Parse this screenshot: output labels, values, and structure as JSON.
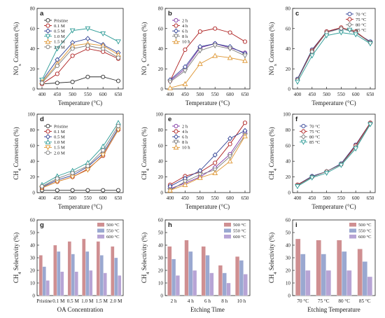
{
  "colors": {
    "g2_0": "#2e2e2e",
    "g2_1": "#ad1e1e",
    "g2_2": "#2e3f93",
    "g2_3": "#2c9b96",
    "g2_4": "#de9531",
    "g2_5": "#7b7b7b",
    "g5_0": "#7b2fa0",
    "g5_1": "#ad1e1e",
    "g5_2": "#2e3f93",
    "g5_3": "#7b7b7b",
    "g5_4": "#de9531",
    "g3_0": "#2e3f93",
    "g3_1": "#ad1e1e",
    "g3_2": "#7b7b7b",
    "g3_3": "#2c9b96",
    "bar_500": "#cf8f91",
    "bar_550": "#9aa8d0",
    "bar_600": "#b7a4d5"
  },
  "chart_data": [
    {
      "panel": "a",
      "type": "line",
      "x": [
        400,
        450,
        500,
        550,
        600,
        650
      ],
      "xlabel": "Temperature (°C)",
      "ylabel": "NOx Conversion (%)",
      "ylim": [
        0,
        80
      ],
      "legend": "top-left",
      "series": [
        {
          "name": "Pristine",
          "marker": "circle",
          "values": [
            5,
            6,
            7,
            12,
            12,
            8
          ]
        },
        {
          "name": "0.1 M",
          "marker": "circle",
          "values": [
            5,
            15,
            33,
            40,
            37,
            30
          ]
        },
        {
          "name": "0.5 M",
          "marker": "diamond",
          "values": [
            8,
            29,
            46,
            50,
            44,
            36
          ]
        },
        {
          "name": "1.0 M",
          "marker": "triangle-down",
          "values": [
            9,
            40,
            58,
            60,
            55,
            47
          ]
        },
        {
          "name": "1.5 M",
          "marker": "triangle",
          "values": [
            7,
            25,
            43,
            45,
            43,
            34
          ]
        },
        {
          "name": "2.0 M",
          "marker": "circle",
          "values": [
            6,
            23,
            40,
            43,
            40,
            31
          ]
        }
      ]
    },
    {
      "panel": "b",
      "type": "line",
      "x": [
        400,
        450,
        500,
        550,
        600,
        650
      ],
      "xlabel": "Temperature (°C)",
      "ylabel": "NOx Conversion (%)",
      "ylim": [
        0,
        80
      ],
      "legend": "top-left",
      "series": [
        {
          "name": "2 h",
          "marker": "circle",
          "values": [
            8,
            20,
            41,
            45,
            41,
            36
          ]
        },
        {
          "name": "4 h",
          "marker": "circle",
          "values": [
            8,
            39,
            57,
            60,
            56,
            47
          ]
        },
        {
          "name": "6 h",
          "marker": "diamond",
          "values": [
            9,
            22,
            42,
            45,
            42,
            35
          ]
        },
        {
          "name": "8 h",
          "marker": "triangle-down",
          "values": [
            7,
            18,
            38,
            43,
            40,
            33
          ]
        },
        {
          "name": "10 h",
          "marker": "triangle",
          "values": [
            1,
            5,
            25,
            33,
            31,
            28
          ]
        }
      ]
    },
    {
      "panel": "c",
      "type": "line",
      "x": [
        400,
        450,
        500,
        550,
        600,
        650
      ],
      "xlabel": "Temperature (°C)",
      "ylabel": "NOx Conversion (%)",
      "ylim": [
        0,
        80
      ],
      "legend": "top-right",
      "series": [
        {
          "name": "70 °C",
          "marker": "circle",
          "values": [
            10,
            39,
            57,
            60,
            56,
            47
          ]
        },
        {
          "name": "75 °C",
          "marker": "circle",
          "values": [
            9,
            38,
            57,
            61,
            57,
            46
          ]
        },
        {
          "name": "80 °C",
          "marker": "diamond",
          "values": [
            9,
            37,
            56,
            60,
            56,
            46
          ]
        },
        {
          "name": "85 °C",
          "marker": "triangle-down",
          "values": [
            7,
            33,
            53,
            56,
            54,
            45
          ]
        }
      ]
    },
    {
      "panel": "d",
      "type": "line",
      "x": [
        400,
        450,
        500,
        550,
        600,
        650
      ],
      "xlabel": "Temperature (°C)",
      "ylabel": "CH4 Conversion (%)",
      "ylim": [
        0,
        100
      ],
      "legend": "top-left",
      "series": [
        {
          "name": "Pristine",
          "marker": "circle",
          "values": [
            3,
            3,
            3,
            3,
            3,
            3
          ]
        },
        {
          "name": "0.1 M",
          "marker": "circle",
          "values": [
            6,
            14,
            20,
            30,
            47,
            80
          ]
        },
        {
          "name": "0.5 M",
          "marker": "diamond",
          "values": [
            7,
            16,
            22,
            33,
            50,
            82
          ]
        },
        {
          "name": "1.0 M",
          "marker": "triangle",
          "values": [
            10,
            21,
            28,
            38,
            59,
            89
          ]
        },
        {
          "name": "1.5 M",
          "marker": "triangle-down",
          "values": [
            6,
            14,
            20,
            29,
            48,
            80
          ]
        },
        {
          "name": "2.0 M",
          "marker": "circle",
          "values": [
            8,
            18,
            25,
            34,
            54,
            85
          ]
        }
      ]
    },
    {
      "panel": "e",
      "type": "line",
      "x": [
        400,
        450,
        500,
        550,
        600,
        650
      ],
      "xlabel": "Temperature (°C)",
      "ylabel": "CH4 Conversion (%)",
      "ylim": [
        0,
        100
      ],
      "legend": "top-left",
      "series": [
        {
          "name": "2 h",
          "marker": "circle",
          "values": [
            5,
            12,
            20,
            32,
            49,
            77
          ]
        },
        {
          "name": "4 h",
          "marker": "circle",
          "values": [
            10,
            21,
            26,
            38,
            62,
            89
          ]
        },
        {
          "name": "6 h",
          "marker": "diamond",
          "values": [
            8,
            18,
            28,
            48,
            69,
            79
          ]
        },
        {
          "name": "8 h",
          "marker": "triangle-down",
          "values": [
            3,
            14,
            23,
            29,
            46,
            73
          ]
        },
        {
          "name": "10 h",
          "marker": "triangle",
          "values": [
            3,
            10,
            19,
            25,
            40,
            72
          ]
        }
      ]
    },
    {
      "panel": "f",
      "type": "line",
      "x": [
        400,
        450,
        500,
        550,
        600,
        650
      ],
      "xlabel": "Temperature (°C)",
      "ylabel": "CH4 Conversion (%)",
      "ylim": [
        0,
        100
      ],
      "legend": "top-left",
      "series": [
        {
          "name": "70 °C",
          "marker": "circle",
          "values": [
            10,
            21,
            27,
            37,
            61,
            89
          ]
        },
        {
          "name": "75 °C",
          "marker": "circle",
          "values": [
            10,
            20,
            27,
            36,
            60,
            89
          ]
        },
        {
          "name": "80 °C",
          "marker": "diamond",
          "values": [
            9,
            20,
            27,
            36,
            58,
            88
          ]
        },
        {
          "name": "85 °C",
          "marker": "triangle-down",
          "values": [
            8,
            19,
            25,
            35,
            56,
            87
          ]
        }
      ]
    },
    {
      "panel": "g",
      "type": "bar",
      "categories": [
        "Pristine",
        "0.1 M",
        "0.5 M",
        "1.0 M",
        "1.5 M",
        "2.0 M"
      ],
      "xlabel": "OA Concentration",
      "ylabel": "CH4 Selectivity (%)",
      "ylim": [
        0,
        60
      ],
      "legend": "top-right",
      "series": [
        {
          "name": "500 °C",
          "values": [
            32,
            40,
            43,
            45,
            43,
            39
          ]
        },
        {
          "name": "550 °C",
          "values": [
            23,
            35,
            33,
            35,
            32,
            30
          ]
        },
        {
          "name": "600 °C",
          "values": [
            12,
            19,
            19,
            20,
            18,
            16
          ]
        }
      ]
    },
    {
      "panel": "h",
      "type": "bar",
      "categories": [
        "2 h",
        "4 h",
        "6 h",
        "8 h",
        "10 h"
      ],
      "xlabel": "Etching Time",
      "ylabel": "CH4 Selectivity (%)",
      "ylim": [
        0,
        60
      ],
      "legend": "top-right",
      "series": [
        {
          "name": "500 °C",
          "values": [
            39,
            44,
            39,
            24,
            31
          ]
        },
        {
          "name": "550 °C",
          "values": [
            29,
            35,
            32,
            18,
            28
          ]
        },
        {
          "name": "600 °C",
          "values": [
            16,
            20,
            18,
            10,
            17
          ]
        }
      ]
    },
    {
      "panel": "i",
      "type": "bar",
      "categories": [
        "70 °C",
        "75 °C",
        "80 °C",
        "85 °C"
      ],
      "xlabel": "Etching Temperature",
      "ylabel": "CH4 Selectivity (%)",
      "ylim": [
        0,
        60
      ],
      "legend": "top-right",
      "series": [
        {
          "name": "500 °C",
          "values": [
            45,
            44,
            44,
            37
          ]
        },
        {
          "name": "550 °C",
          "values": [
            33,
            33,
            35,
            27
          ]
        },
        {
          "name": "600 °C",
          "values": [
            20,
            20,
            20,
            15
          ]
        }
      ]
    }
  ]
}
